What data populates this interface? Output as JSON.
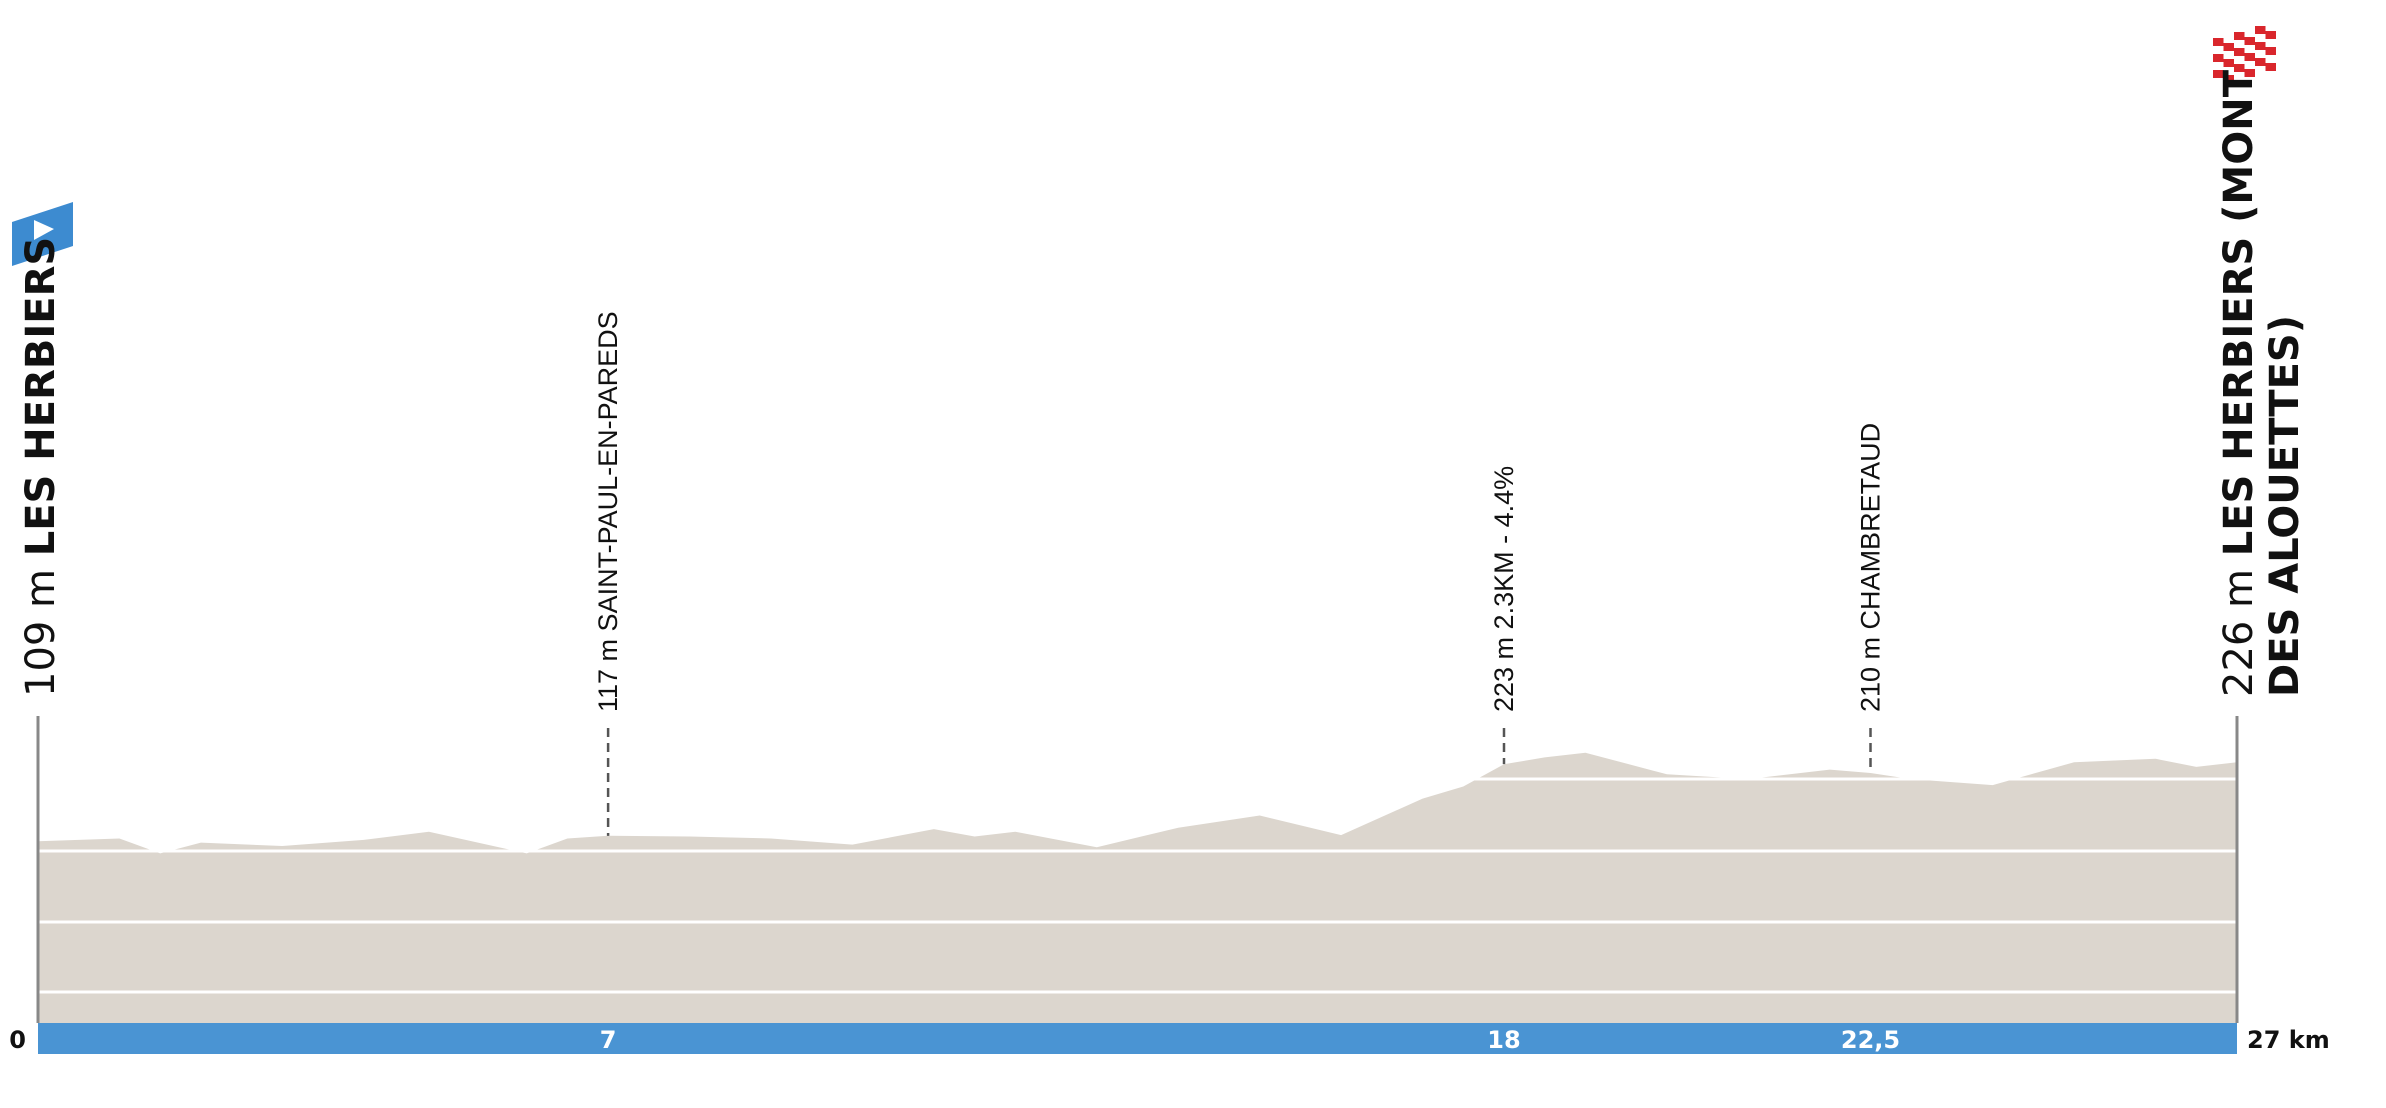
{
  "chart_data": {
    "type": "area",
    "x": [
      0,
      1,
      1.5,
      2,
      3,
      4,
      4.8,
      6,
      6.5,
      7,
      8,
      9,
      10,
      11,
      11.5,
      12,
      13,
      14,
      15,
      16,
      17,
      17.5,
      18,
      18.5,
      19,
      20,
      21,
      22,
      22.5,
      23,
      24,
      25,
      26,
      26.5,
      27
    ],
    "values": [
      109,
      113,
      91,
      107,
      102,
      111,
      123,
      91,
      113,
      117,
      116,
      113,
      104,
      127,
      116,
      123,
      100,
      129,
      147,
      118,
      172,
      190,
      223,
      233,
      240,
      208,
      201,
      215,
      210,
      201,
      192,
      226,
      231,
      219,
      226
    ],
    "color": "#dcd6ce",
    "xlim": [
      0,
      27
    ],
    "ylim": [
      -160,
      500
    ],
    "xticks": [
      0,
      7,
      18,
      {
        "value": 22.5,
        "label": "22,5"
      },
      {
        "value": 27,
        "label": "27 km"
      }
    ],
    "bar_color": "#4a94d3",
    "markers": [
      {
        "km": 0,
        "altitude": {
          "value": 109,
          "label": "109 m"
        },
        "name": [
          "LES HERBIERS"
        ],
        "major": true
      },
      {
        "km": 7,
        "altitude": {
          "value": 117,
          "label": "117 m"
        },
        "name": [
          "SAINT-PAUL-EN-PAREDS"
        ],
        "major": false
      },
      {
        "km": 18,
        "altitude": {
          "value": 223,
          "label": "223 m"
        },
        "name": [
          "2.3KM - 4.4%"
        ],
        "major": false
      },
      {
        "km": 22.5,
        "altitude": {
          "value": 210,
          "label": "210 m"
        },
        "name": [
          "CHAMBRETAUD"
        ],
        "major": false
      },
      {
        "km": 27,
        "altitude": {
          "value": 226,
          "label": "226 m"
        },
        "name": [
          "LES HERBIERS (MONT",
          "DES ALOUETTES)"
        ],
        "major": true
      }
    ]
  }
}
